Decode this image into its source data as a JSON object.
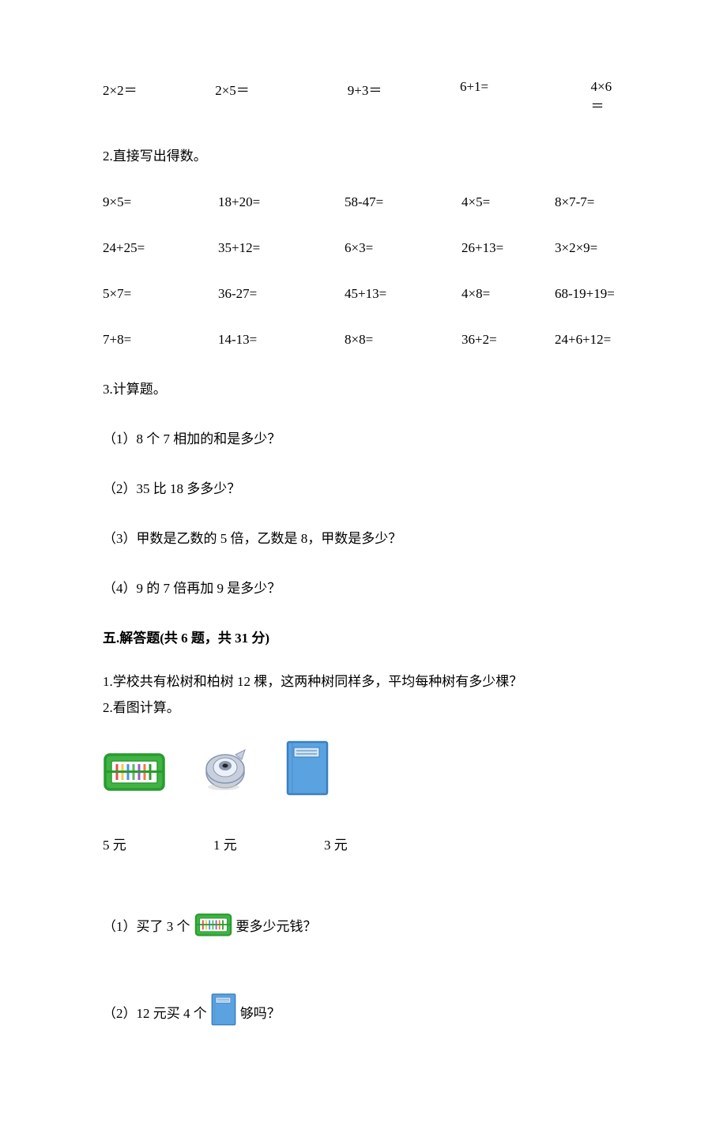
{
  "row1": {
    "eq1": "2×2＝",
    "eq2": "2×5＝",
    "eq3": "9+3＝",
    "eq4": "6+1=",
    "eq5": "4×6＝",
    "w1": "146px",
    "w2": "172px",
    "w3": "146px",
    "w4": "170px",
    "w5": "auto"
  },
  "section2_title": "2.直接写出得数。",
  "grid": {
    "r1": {
      "c1": "9×5=",
      "c2": "18+20=",
      "c3": "58-47=",
      "c4": "4×5=",
      "c5": "8×7-7="
    },
    "r2": {
      "c1": "24+25=",
      "c2": "35+12=",
      "c3": "6×3=",
      "c4": "26+13=",
      "c5": "3×2×9="
    },
    "r3": {
      "c1": "5×7=",
      "c2": "36-27=",
      "c3": "45+13=",
      "c4": "4×8=",
      "c5": "68-19+19="
    },
    "r4": {
      "c1": "7+8=",
      "c2": "14-13=",
      "c3": "8×8=",
      "c4": "36+2=",
      "c5": "24+6+12="
    },
    "widths": {
      "c1": "146px",
      "c2": "160px",
      "c3": "148px",
      "c4": "118px",
      "c5": "auto"
    }
  },
  "section3_title": "3.计算题。",
  "q3_1": "（1）8 个 7 相加的和是多少？",
  "q3_2": "（2）35 比 18 多多少？",
  "q3_3": "（3）甲数是乙数的 5 倍，乙数是 8，甲数是多少？",
  "q3_4": "（4）9 的 7 倍再加 9 是多少？",
  "section5_heading": "五.解答题(共 6 题，共 31 分)",
  "q5_1": "1.学校共有松树和柏树 12 棵，这两种树同样多，平均每种树有多少棵？",
  "q5_2": "2.看图计算。",
  "prices": {
    "p1": "5 元",
    "p2": "1 元",
    "p3": "3 元",
    "w1": "140px",
    "w2": "140px",
    "w3": "auto"
  },
  "q5_2_1_pre": "（1）买了 3 个",
  "q5_2_1_post": "要多少元钱？",
  "q5_2_2_pre": "（2）12 元买 4 个",
  "q5_2_2_post": "够吗？",
  "colors": {
    "pencilcase_border": "#2a9b2f",
    "pencilcase_fill": "#3fb344",
    "sharpener_body": "#c8d0dd",
    "sharpener_dark": "#8a96b0",
    "notebook_fill": "#5aa3e0",
    "notebook_border": "#3b7fbf",
    "notebook_label": "#d4e5f4"
  },
  "icon_sizes": {
    "large_w": 80,
    "large_h": 60,
    "sharpener_w": 70,
    "sharpener_h": 60,
    "notebook_w": 58,
    "notebook_h": 74,
    "inline_case_w": 50,
    "inline_case_h": 36,
    "inline_book_w": 34,
    "inline_book_h": 44
  }
}
